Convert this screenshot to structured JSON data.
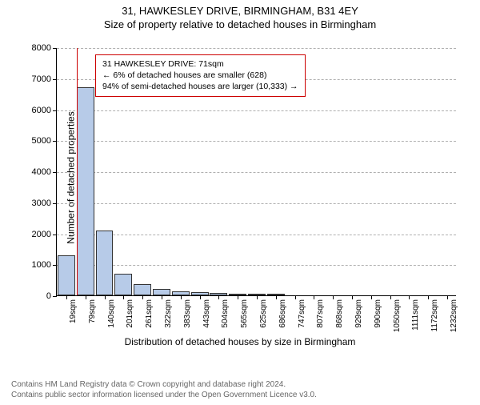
{
  "titles": {
    "address": "31, HAWKESLEY DRIVE, BIRMINGHAM, B31 4EY",
    "subtitle": "Size of property relative to detached houses in Birmingham"
  },
  "axes": {
    "ylabel": "Number of detached properties",
    "xlabel": "Distribution of detached houses by size in Birmingham",
    "ymax": 8000,
    "ytick_step": 1000,
    "yticks": [
      0,
      1000,
      2000,
      3000,
      4000,
      5000,
      6000,
      7000,
      8000
    ]
  },
  "style": {
    "bar_fill": "#b7cbe8",
    "bar_stroke": "#333333",
    "grid_color": "#b0b0b0",
    "marker_color": "#cc0000",
    "background": "#ffffff",
    "label_fontsize": 12,
    "tick_fontsize": 11,
    "title_fontsize": 13
  },
  "chart": {
    "type": "histogram",
    "x_labels": [
      "19sqm",
      "79sqm",
      "140sqm",
      "201sqm",
      "261sqm",
      "322sqm",
      "383sqm",
      "443sqm",
      "504sqm",
      "565sqm",
      "625sqm",
      "686sqm",
      "747sqm",
      "807sqm",
      "868sqm",
      "929sqm",
      "990sqm",
      "1050sqm",
      "1111sqm",
      "1172sqm",
      "1232sqm"
    ],
    "values": [
      1300,
      6700,
      2100,
      700,
      350,
      200,
      120,
      100,
      80,
      60,
      40,
      30,
      0,
      0,
      0,
      0,
      0,
      0,
      0,
      0,
      0
    ],
    "marker_index": 1
  },
  "info_box": {
    "line1": "31 HAWKESLEY DRIVE: 71sqm",
    "line2": "← 6% of detached houses are smaller (628)",
    "line3": "94% of semi-detached houses are larger (10,333) →"
  },
  "attribution": {
    "line1": "Contains HM Land Registry data © Crown copyright and database right 2024.",
    "line2": "Contains public sector information licensed under the Open Government Licence v3.0."
  }
}
